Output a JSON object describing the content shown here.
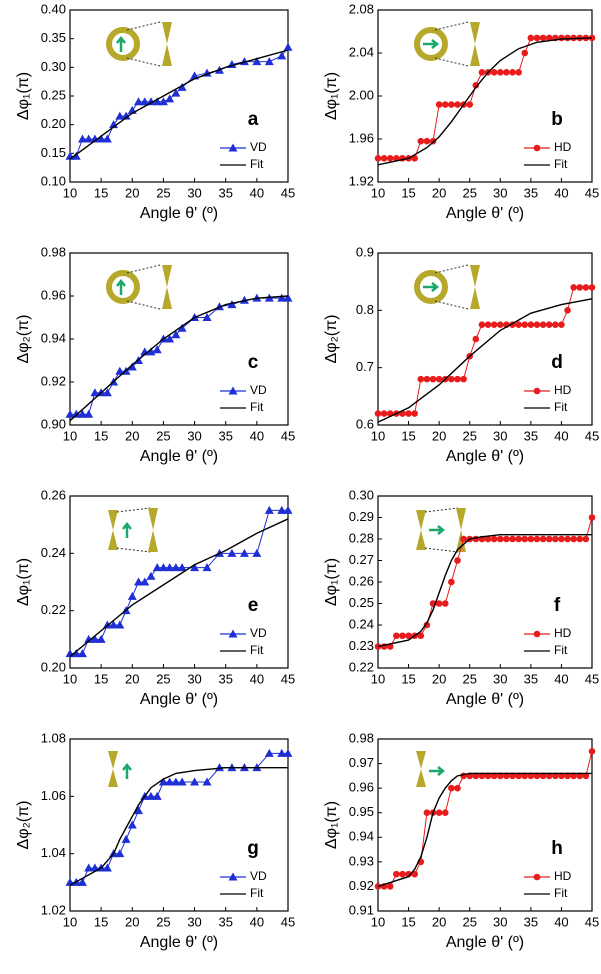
{
  "chart_data": [
    {
      "type": "line",
      "panel": "a",
      "x_label": "Angle θ' (º)",
      "y_label": "Δφ₁(π)",
      "xlim": [
        10,
        45
      ],
      "xticks": [
        10,
        15,
        20,
        25,
        30,
        35,
        40,
        45
      ],
      "ylim": [
        0.1,
        0.4
      ],
      "yticks": [
        {
          "value": 0.1,
          "label": "0.10"
        },
        0.15,
        {
          "value": 0.2,
          "label": "0.20"
        },
        0.25,
        {
          "value": 0.3,
          "label": "0.30"
        },
        0.35,
        {
          "value": 0.4,
          "label": "0.40"
        }
      ],
      "series": [
        {
          "name": "VD",
          "color": "#1f2fd6",
          "marker": "triangle",
          "x": [
            10,
            11,
            12,
            13,
            14,
            15,
            16,
            17,
            18,
            19,
            20,
            21,
            22,
            23,
            24,
            25,
            26,
            27,
            28,
            30,
            32,
            34,
            36,
            38,
            40,
            42,
            44,
            45
          ],
          "values": [
            0.145,
            0.145,
            0.175,
            0.175,
            0.175,
            0.175,
            0.175,
            0.2,
            0.215,
            0.215,
            0.225,
            0.24,
            0.24,
            0.24,
            0.24,
            0.24,
            0.245,
            0.255,
            0.265,
            0.285,
            0.29,
            0.295,
            0.305,
            0.31,
            0.31,
            0.31,
            0.32,
            0.335
          ]
        },
        {
          "name": "Fit",
          "color": "#000000",
          "x": [
            10,
            15,
            20,
            25,
            30,
            35,
            40,
            45
          ],
          "values": [
            0.14,
            0.18,
            0.22,
            0.25,
            0.28,
            0.3,
            0.315,
            0.33
          ]
        }
      ]
    },
    {
      "type": "line",
      "panel": "b",
      "x_label": "Angle θ' (º)",
      "y_label": "Δφ₁(π)",
      "xlim": [
        10,
        45
      ],
      "xticks": [
        10,
        15,
        20,
        25,
        30,
        35,
        40,
        45
      ],
      "ylim": [
        1.92,
        2.08
      ],
      "yticks": [
        1.92,
        1.96,
        {
          "value": 2,
          "label": "2.00"
        },
        2.04,
        2.08
      ],
      "series": [
        {
          "name": "HD",
          "color": "#e81c1c",
          "marker": "circle",
          "x": [
            10,
            11,
            12,
            13,
            14,
            15,
            16,
            17,
            18,
            19,
            20,
            21,
            22,
            23,
            24,
            25,
            26,
            27,
            28,
            29,
            30,
            31,
            32,
            33,
            34,
            35,
            36,
            37,
            38,
            39,
            40,
            41,
            42,
            43,
            44,
            45
          ],
          "values": [
            1.942,
            1.942,
            1.942,
            1.942,
            1.942,
            1.942,
            1.942,
            1.958,
            1.958,
            1.958,
            1.992,
            1.992,
            1.992,
            1.992,
            1.992,
            1.992,
            2.01,
            2.022,
            2.022,
            2.022,
            2.022,
            2.022,
            2.022,
            2.022,
            2.04,
            2.054,
            2.054,
            2.054,
            2.054,
            2.054,
            2.054,
            2.054,
            2.054,
            2.054,
            2.054,
            2.054
          ]
        },
        {
          "name": "Fit",
          "color": "#000000",
          "x": [
            10,
            15,
            18,
            20,
            22,
            24,
            26,
            28,
            30,
            33,
            36,
            40,
            45
          ],
          "values": [
            1.936,
            1.942,
            1.952,
            1.962,
            1.976,
            1.992,
            2.008,
            2.022,
            2.033,
            2.044,
            2.05,
            2.053,
            2.054
          ]
        }
      ]
    },
    {
      "type": "line",
      "panel": "c",
      "x_label": "Angle θ' (º)",
      "y_label": "Δφ₂(π)",
      "xlim": [
        10,
        45
      ],
      "xticks": [
        10,
        15,
        20,
        25,
        30,
        35,
        40,
        45
      ],
      "ylim": [
        0.9,
        0.98
      ],
      "yticks": [
        {
          "value": 0.9,
          "label": "0.90"
        },
        0.92,
        0.94,
        0.96,
        0.98
      ],
      "series": [
        {
          "name": "VD",
          "color": "#1f2fd6",
          "marker": "triangle",
          "x": [
            10,
            11,
            12,
            13,
            14,
            15,
            16,
            17,
            18,
            19,
            20,
            21,
            22,
            23,
            24,
            25,
            26,
            27,
            28,
            30,
            32,
            34,
            36,
            38,
            40,
            42,
            44,
            45
          ],
          "values": [
            0.905,
            0.905,
            0.905,
            0.905,
            0.915,
            0.915,
            0.915,
            0.92,
            0.925,
            0.925,
            0.927,
            0.93,
            0.934,
            0.934,
            0.935,
            0.94,
            0.94,
            0.942,
            0.945,
            0.95,
            0.95,
            0.955,
            0.956,
            0.958,
            0.959,
            0.959,
            0.959,
            0.959
          ]
        },
        {
          "name": "Fit",
          "color": "#000000",
          "x": [
            10,
            15,
            20,
            25,
            30,
            35,
            40,
            45
          ],
          "values": [
            0.902,
            0.915,
            0.928,
            0.94,
            0.95,
            0.956,
            0.959,
            0.96
          ]
        }
      ]
    },
    {
      "type": "line",
      "panel": "d",
      "x_label": "Angle θ' (º)",
      "y_label": "Δφ₂(π)",
      "xlim": [
        10,
        45
      ],
      "xticks": [
        10,
        15,
        20,
        25,
        30,
        35,
        40,
        45
      ],
      "ylim": [
        0.6,
        0.9
      ],
      "yticks": [
        0.6,
        0.7,
        0.8,
        0.9
      ],
      "series": [
        {
          "name": "HD",
          "color": "#e81c1c",
          "marker": "circle",
          "x": [
            10,
            11,
            12,
            13,
            14,
            15,
            16,
            17,
            18,
            19,
            20,
            21,
            22,
            23,
            24,
            25,
            26,
            27,
            28,
            29,
            30,
            31,
            32,
            33,
            34,
            35,
            36,
            37,
            38,
            39,
            40,
            41,
            42,
            43,
            44,
            45
          ],
          "values": [
            0.62,
            0.62,
            0.62,
            0.62,
            0.62,
            0.62,
            0.62,
            0.68,
            0.68,
            0.68,
            0.68,
            0.68,
            0.68,
            0.68,
            0.68,
            0.72,
            0.75,
            0.775,
            0.775,
            0.775,
            0.775,
            0.775,
            0.775,
            0.775,
            0.775,
            0.775,
            0.775,
            0.775,
            0.775,
            0.775,
            0.775,
            0.8,
            0.84,
            0.84,
            0.84,
            0.84
          ]
        },
        {
          "name": "Fit",
          "color": "#000000",
          "x": [
            10,
            15,
            20,
            25,
            30,
            35,
            40,
            45
          ],
          "values": [
            0.605,
            0.63,
            0.67,
            0.72,
            0.765,
            0.795,
            0.81,
            0.82
          ]
        }
      ]
    },
    {
      "type": "line",
      "panel": "e",
      "x_label": "Angle θ' (º)",
      "y_label": "Δφ₁(π)",
      "xlim": [
        10,
        45
      ],
      "xticks": [
        10,
        15,
        20,
        25,
        30,
        35,
        40,
        45
      ],
      "ylim": [
        0.2,
        0.26
      ],
      "yticks": [
        {
          "value": 0.2,
          "label": "0.20"
        },
        0.22,
        0.24,
        0.26
      ],
      "series": [
        {
          "name": "VD",
          "color": "#1f2fd6",
          "marker": "triangle",
          "x": [
            10,
            11,
            12,
            13,
            14,
            15,
            16,
            17,
            18,
            19,
            20,
            21,
            22,
            23,
            24,
            25,
            26,
            27,
            28,
            30,
            32,
            34,
            36,
            38,
            40,
            42,
            44,
            45
          ],
          "values": [
            0.205,
            0.205,
            0.205,
            0.21,
            0.21,
            0.21,
            0.215,
            0.215,
            0.215,
            0.22,
            0.225,
            0.23,
            0.23,
            0.232,
            0.235,
            0.235,
            0.235,
            0.235,
            0.235,
            0.235,
            0.235,
            0.24,
            0.24,
            0.24,
            0.24,
            0.255,
            0.255,
            0.255
          ]
        },
        {
          "name": "Fit",
          "color": "#000000",
          "x": [
            10,
            15,
            20,
            25,
            30,
            35,
            40,
            45
          ],
          "values": [
            0.204,
            0.213,
            0.222,
            0.229,
            0.236,
            0.241,
            0.247,
            0.252
          ]
        }
      ]
    },
    {
      "type": "line",
      "panel": "f",
      "x_label": "Angle θ' (º)",
      "y_label": "Δφ₁(π)",
      "xlim": [
        10,
        45
      ],
      "xticks": [
        10,
        15,
        20,
        25,
        30,
        35,
        40,
        45
      ],
      "ylim": [
        0.22,
        0.3
      ],
      "yticks": [
        0.22,
        0.23,
        0.24,
        0.25,
        0.26,
        0.27,
        0.28,
        0.29,
        {
          "value": 0.3,
          "label": "0.30"
        }
      ],
      "series": [
        {
          "name": "HD",
          "color": "#e81c1c",
          "marker": "circle",
          "x": [
            10,
            11,
            12,
            13,
            14,
            15,
            16,
            17,
            18,
            19,
            20,
            21,
            22,
            23,
            24,
            25,
            26,
            27,
            28,
            29,
            30,
            31,
            32,
            33,
            34,
            35,
            36,
            37,
            38,
            39,
            40,
            41,
            42,
            43,
            44,
            45
          ],
          "values": [
            0.23,
            0.23,
            0.23,
            0.235,
            0.235,
            0.235,
            0.235,
            0.235,
            0.24,
            0.25,
            0.25,
            0.25,
            0.26,
            0.27,
            0.28,
            0.28,
            0.28,
            0.28,
            0.28,
            0.28,
            0.28,
            0.28,
            0.28,
            0.28,
            0.28,
            0.28,
            0.28,
            0.28,
            0.28,
            0.28,
            0.28,
            0.28,
            0.28,
            0.28,
            0.28,
            0.29
          ]
        },
        {
          "name": "Fit",
          "color": "#000000",
          "x": [
            10,
            15,
            17,
            18,
            19,
            20,
            21,
            22,
            23,
            25,
            27,
            30,
            45
          ],
          "values": [
            0.23,
            0.233,
            0.237,
            0.241,
            0.247,
            0.255,
            0.263,
            0.27,
            0.275,
            0.28,
            0.281,
            0.282,
            0.282
          ]
        }
      ]
    },
    {
      "type": "line",
      "panel": "g",
      "x_label": "Angle θ' (º)",
      "y_label": "Δφ₂(π)",
      "xlim": [
        10,
        45
      ],
      "xticks": [
        10,
        15,
        20,
        25,
        30,
        35,
        40,
        45
      ],
      "ylim": [
        1.02,
        1.08
      ],
      "yticks": [
        1.02,
        1.04,
        1.06,
        1.08
      ],
      "series": [
        {
          "name": "VD",
          "color": "#1f2fd6",
          "marker": "triangle",
          "x": [
            10,
            11,
            12,
            13,
            14,
            15,
            16,
            17,
            18,
            19,
            20,
            21,
            22,
            23,
            24,
            25,
            26,
            27,
            28,
            30,
            32,
            34,
            36,
            38,
            40,
            42,
            44,
            45
          ],
          "values": [
            1.03,
            1.03,
            1.03,
            1.035,
            1.035,
            1.035,
            1.035,
            1.04,
            1.04,
            1.045,
            1.05,
            1.055,
            1.06,
            1.06,
            1.06,
            1.065,
            1.065,
            1.065,
            1.065,
            1.065,
            1.065,
            1.07,
            1.07,
            1.07,
            1.07,
            1.075,
            1.075,
            1.075
          ]
        },
        {
          "name": "Fit",
          "color": "#000000",
          "x": [
            10,
            15,
            17,
            18,
            19,
            20,
            21,
            22,
            23,
            25,
            27,
            30,
            35,
            45
          ],
          "values": [
            1.029,
            1.035,
            1.04,
            1.045,
            1.049,
            1.053,
            1.057,
            1.06,
            1.063,
            1.066,
            1.068,
            1.069,
            1.07,
            1.07
          ]
        }
      ]
    },
    {
      "type": "line",
      "panel": "h",
      "x_label": "Angle θ' (º)",
      "y_label": "Δφ₁(π)",
      "xlim": [
        10,
        45
      ],
      "xticks": [
        10,
        15,
        20,
        25,
        30,
        35,
        40,
        45
      ],
      "ylim": [
        0.91,
        0.98
      ],
      "yticks": [
        0.91,
        0.92,
        0.93,
        0.94,
        0.95,
        0.96,
        0.97,
        0.98
      ],
      "series": [
        {
          "name": "HD",
          "color": "#e81c1c",
          "marker": "circle",
          "x": [
            10,
            11,
            12,
            13,
            14,
            15,
            16,
            17,
            18,
            19,
            20,
            21,
            22,
            23,
            24,
            25,
            26,
            27,
            28,
            29,
            30,
            31,
            32,
            33,
            34,
            35,
            36,
            37,
            38,
            39,
            40,
            41,
            42,
            43,
            44,
            45
          ],
          "values": [
            0.92,
            0.92,
            0.92,
            0.925,
            0.925,
            0.925,
            0.925,
            0.93,
            0.95,
            0.95,
            0.95,
            0.95,
            0.96,
            0.96,
            0.965,
            0.965,
            0.965,
            0.965,
            0.965,
            0.965,
            0.965,
            0.965,
            0.965,
            0.965,
            0.965,
            0.965,
            0.965,
            0.965,
            0.965,
            0.965,
            0.965,
            0.965,
            0.965,
            0.965,
            0.965,
            0.975
          ]
        },
        {
          "name": "Fit",
          "color": "#000000",
          "x": [
            10,
            15,
            16,
            17,
            18,
            19,
            20,
            21,
            22,
            23,
            25,
            45
          ],
          "values": [
            0.92,
            0.924,
            0.927,
            0.932,
            0.94,
            0.95,
            0.956,
            0.96,
            0.963,
            0.965,
            0.966,
            0.966
          ]
        }
      ]
    }
  ]
}
